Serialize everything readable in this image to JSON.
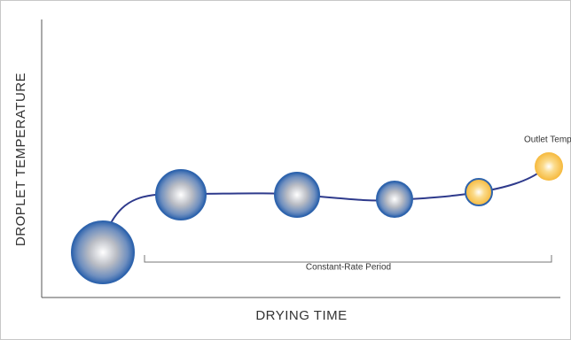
{
  "axes": {
    "y_label": "DROPLET TEMPERATURE",
    "x_label": "DRYING TIME"
  },
  "annotations": {
    "outlet": "Outlet Temp",
    "period": "Constant-Rate Period"
  }
}
